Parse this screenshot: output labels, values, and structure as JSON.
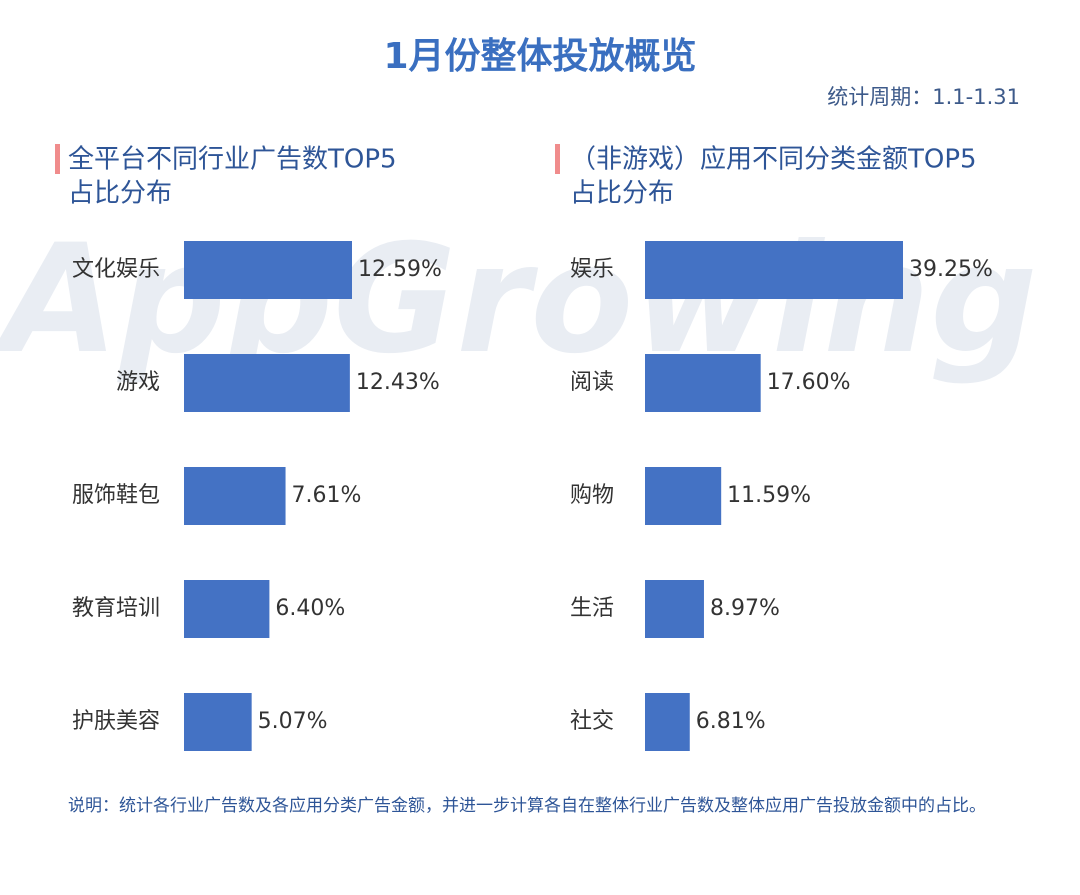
{
  "title": "1月份整体投放概览",
  "period": "统计周期：1.1-1.31",
  "watermark": "AppGrowing",
  "chart_data": [
    {
      "type": "barh",
      "title": [
        "全平台不同行业广告数TOP5",
        "占比分布"
      ],
      "categories": [
        "文化娱乐",
        "游戏",
        "服饰鞋包",
        "教育培训",
        "护肤美容"
      ],
      "values": [
        12.59,
        12.43,
        7.61,
        6.4,
        5.07
      ],
      "value_labels": [
        "12.59%",
        "12.43%",
        "7.61%",
        "6.40%",
        "5.07%"
      ],
      "color": "#4472c4"
    },
    {
      "type": "barh",
      "title": [
        "（非游戏）应用不同分类金额TOP5",
        "占比分布"
      ],
      "categories": [
        "娱乐",
        "阅读",
        "购物",
        "生活",
        "社交"
      ],
      "values": [
        39.25,
        17.6,
        11.59,
        8.97,
        6.81
      ],
      "value_labels": [
        "39.25%",
        "17.60%",
        "11.59%",
        "8.97%",
        "6.81%"
      ],
      "color": "#4472c4"
    }
  ],
  "note": "说明：统计各行业广告数及各应用分类广告金额，并进一步计算各自在整体行业广告数及整体应用广告投放金额中的占比。"
}
